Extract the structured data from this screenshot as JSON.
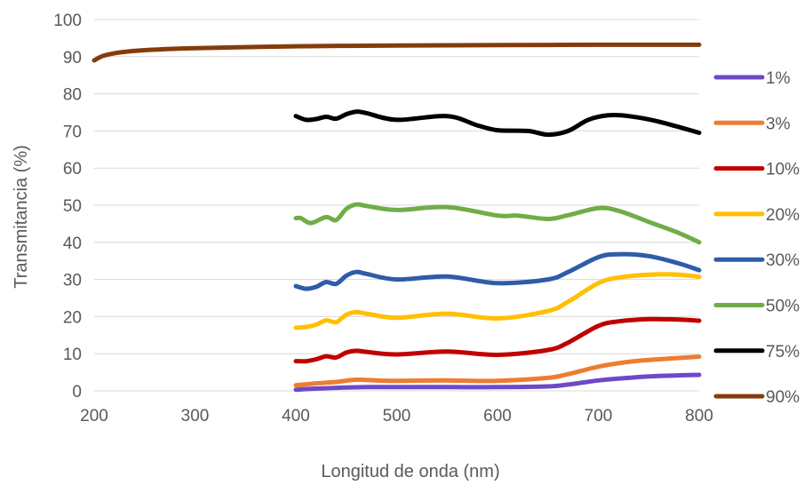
{
  "chart_data": {
    "type": "line",
    "title": "",
    "xlabel": "Longitud de onda (nm)",
    "ylabel": "Transmitancia (%)",
    "xlim": [
      200,
      800
    ],
    "ylim": [
      0,
      100
    ],
    "x_ticks": [
      200,
      300,
      400,
      500,
      600,
      700,
      800
    ],
    "y_ticks": [
      0,
      10,
      20,
      30,
      40,
      50,
      60,
      70,
      80,
      90,
      100
    ],
    "grid": "horizontal",
    "legend_position": "right",
    "series": [
      {
        "name": "1%",
        "color": "#7030a0",
        "color_alt": "#6f48c8",
        "x": [
          400,
          420,
          450,
          470,
          500,
          550,
          600,
          650,
          670,
          700,
          730,
          760,
          800
        ],
        "y": [
          0.3,
          0.6,
          0.9,
          1.0,
          1.0,
          1.0,
          1.0,
          1.2,
          1.7,
          2.8,
          3.5,
          4.0,
          4.3
        ]
      },
      {
        "name": "3%",
        "color": "#ed7d31",
        "x": [
          400,
          420,
          440,
          460,
          480,
          500,
          550,
          600,
          650,
          670,
          700,
          730,
          760,
          800
        ],
        "y": [
          1.5,
          2.0,
          2.4,
          3.0,
          2.8,
          2.7,
          2.8,
          2.7,
          3.5,
          4.5,
          6.5,
          7.8,
          8.5,
          9.2
        ]
      },
      {
        "name": "10%",
        "color": "#c00000",
        "x": [
          400,
          410,
          420,
          430,
          440,
          450,
          460,
          470,
          500,
          550,
          600,
          650,
          670,
          700,
          720,
          750,
          780,
          800
        ],
        "y": [
          8.0,
          8.0,
          8.5,
          9.3,
          9.0,
          10.3,
          10.8,
          10.5,
          9.8,
          10.6,
          9.7,
          11.0,
          13.0,
          17.5,
          18.7,
          19.3,
          19.2,
          18.9
        ]
      },
      {
        "name": "20%",
        "color": "#ffc000",
        "x": [
          400,
          410,
          420,
          430,
          440,
          450,
          460,
          470,
          500,
          550,
          600,
          650,
          670,
          700,
          720,
          750,
          780,
          800
        ],
        "y": [
          17.0,
          17.2,
          17.8,
          19.0,
          18.5,
          20.5,
          21.2,
          20.8,
          19.7,
          20.8,
          19.5,
          21.5,
          24.0,
          29.0,
          30.5,
          31.3,
          31.3,
          30.7
        ]
      },
      {
        "name": "30%",
        "color": "#2e5ca8",
        "x": [
          400,
          410,
          420,
          430,
          440,
          450,
          460,
          470,
          500,
          550,
          600,
          650,
          670,
          700,
          720,
          750,
          780,
          800
        ],
        "y": [
          28.2,
          27.5,
          28.0,
          29.3,
          28.8,
          31.0,
          32.0,
          31.5,
          30.0,
          30.8,
          29.0,
          30.0,
          32.0,
          36.0,
          36.8,
          36.3,
          34.3,
          32.5
        ]
      },
      {
        "name": "50%",
        "color": "#70ad47",
        "x": [
          400,
          405,
          415,
          430,
          440,
          450,
          460,
          470,
          500,
          550,
          600,
          620,
          650,
          670,
          700,
          720,
          750,
          780,
          800
        ],
        "y": [
          46.5,
          46.5,
          45.2,
          46.8,
          46.0,
          49.0,
          50.2,
          49.8,
          48.7,
          49.5,
          47.2,
          47.2,
          46.3,
          47.3,
          49.2,
          48.5,
          45.5,
          42.5,
          40.0
        ]
      },
      {
        "name": "75%",
        "color": "#000000",
        "x": [
          400,
          410,
          420,
          430,
          440,
          450,
          460,
          470,
          500,
          550,
          580,
          600,
          630,
          650,
          670,
          690,
          710,
          730,
          760,
          800
        ],
        "y": [
          74.0,
          73.0,
          73.2,
          73.8,
          73.3,
          74.5,
          75.2,
          74.8,
          73.0,
          74.0,
          71.5,
          70.2,
          70.0,
          69.0,
          70.0,
          73.0,
          74.2,
          74.0,
          72.5,
          69.5
        ]
      },
      {
        "name": "90%",
        "color": "#843c0c",
        "x": [
          200,
          210,
          230,
          260,
          300,
          400,
          500,
          600,
          700,
          800
        ],
        "y": [
          89.0,
          90.3,
          91.3,
          91.9,
          92.3,
          92.8,
          93.0,
          93.1,
          93.2,
          93.2
        ]
      }
    ]
  }
}
